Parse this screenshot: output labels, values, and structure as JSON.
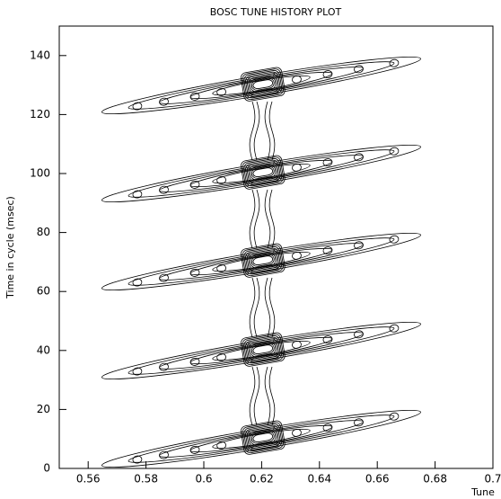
{
  "chart_data": {
    "type": "contour",
    "title": "BOSC TUNE HISTORY PLOT",
    "x_label": "Tune",
    "y_label": "Time in cycle (msec)",
    "xlim": [
      0.55,
      0.7
    ],
    "xticks": [
      0.56,
      0.58,
      0.6,
      0.62,
      0.64,
      0.66,
      0.68,
      0.7
    ],
    "ylim": [
      0,
      150
    ],
    "yticks": [
      0,
      20,
      40,
      60,
      80,
      100,
      120,
      140
    ]
  }
}
